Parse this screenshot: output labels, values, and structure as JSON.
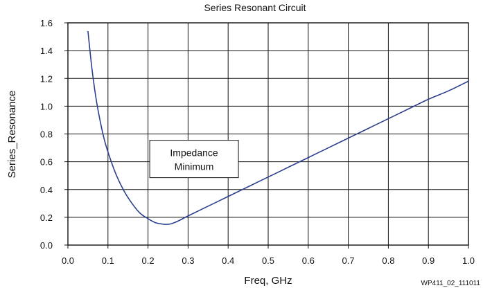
{
  "chart_data": {
    "type": "line",
    "title": "Series Resonant Circuit",
    "xlabel": "Freq, GHz",
    "ylabel": "Series_Resonance",
    "xlim": [
      0.0,
      1.0
    ],
    "ylim": [
      0.0,
      1.6
    ],
    "x_ticks": [
      "0.0",
      "0.1",
      "0.2",
      "0.3",
      "0.4",
      "0.5",
      "0.6",
      "0.7",
      "0.8",
      "0.9",
      "1.0"
    ],
    "y_ticks": [
      "0.0",
      "0.2",
      "0.4",
      "0.6",
      "0.8",
      "1.0",
      "1.2",
      "1.4",
      "1.6"
    ],
    "grid": true,
    "series": [
      {
        "name": "Series_Resonance",
        "color": "#2b3f8f",
        "x": [
          0.05,
          0.06,
          0.07,
          0.08,
          0.09,
          0.1,
          0.12,
          0.14,
          0.16,
          0.18,
          0.2,
          0.22,
          0.24,
          0.25,
          0.26,
          0.28,
          0.3,
          0.35,
          0.4,
          0.45,
          0.5,
          0.55,
          0.6,
          0.65,
          0.7,
          0.75,
          0.8,
          0.85,
          0.9,
          0.95,
          1.0
        ],
        "y": [
          1.54,
          1.27,
          1.06,
          0.9,
          0.77,
          0.67,
          0.51,
          0.39,
          0.3,
          0.23,
          0.19,
          0.16,
          0.15,
          0.15,
          0.155,
          0.18,
          0.21,
          0.28,
          0.35,
          0.42,
          0.49,
          0.56,
          0.63,
          0.7,
          0.77,
          0.84,
          0.91,
          0.98,
          1.05,
          1.11,
          1.18
        ]
      }
    ],
    "annotations": [
      {
        "lines": [
          "Impedance",
          "Minimum"
        ],
        "x": 0.315,
        "y": 0.62
      }
    ]
  },
  "figure_id": "WP411_02_111011"
}
